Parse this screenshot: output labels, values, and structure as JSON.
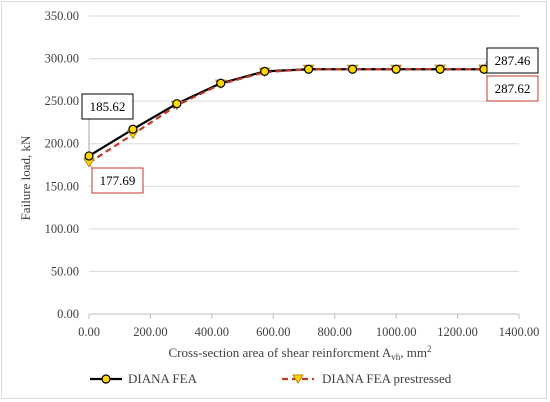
{
  "chart_data": {
    "type": "line",
    "title": "",
    "xlabel": "Cross-section area of shear reinforcment A",
    "xlabel_sub": "vh",
    "xlabel_unit": ", mm",
    "xlabel_sup": "2",
    "ylabel": "Failure load, kN",
    "xlim": [
      0,
      1400
    ],
    "ylim": [
      0,
      350
    ],
    "xticks": [
      0,
      200,
      400,
      600,
      800,
      1000,
      1200,
      1400
    ],
    "yticks": [
      0,
      50,
      100,
      150,
      200,
      250,
      300,
      350
    ],
    "xtick_labels": [
      "0.00",
      "200.00",
      "400.00",
      "600.00",
      "800.00",
      "1000.00",
      "1200.00",
      "1400.00"
    ],
    "ytick_labels": [
      "0.00",
      "50.00",
      "100.00",
      "150.00",
      "200.00",
      "250.00",
      "300.00",
      "350.00"
    ],
    "grid": true,
    "legend_position": "bottom",
    "series": [
      {
        "name": "DIANA FEA",
        "color": "#000000",
        "line_style": "solid",
        "marker_color": "#ffd700",
        "marker": "circle",
        "x": [
          0,
          143,
          286,
          429,
          572,
          715,
          858,
          1000,
          1143,
          1286
        ],
        "y": [
          185.62,
          217,
          247,
          271,
          285,
          287.5,
          287.5,
          287.5,
          287.5,
          287.46
        ]
      },
      {
        "name": "DIANA FEA prestressed",
        "color": "#c0392b",
        "line_style": "dashed",
        "marker_color": "#ffd700",
        "marker": "triangle-down",
        "x": [
          0,
          143,
          286,
          429,
          572,
          715,
          858,
          1000,
          1143,
          1286
        ],
        "y": [
          177.69,
          211,
          245,
          270,
          284,
          287.5,
          287.5,
          287.5,
          287.6,
          287.62
        ]
      }
    ],
    "annotations": [
      {
        "text": "185.62",
        "border": "#000000",
        "target_series": 0,
        "target_index": 0
      },
      {
        "text": "177.69",
        "border": "#c0392b",
        "target_series": 1,
        "target_index": 0
      },
      {
        "text": "287.46",
        "border": "#000000",
        "target_series": 0,
        "target_index": 9
      },
      {
        "text": "287.62",
        "border": "#c0392b",
        "target_series": 1,
        "target_index": 9
      }
    ]
  }
}
